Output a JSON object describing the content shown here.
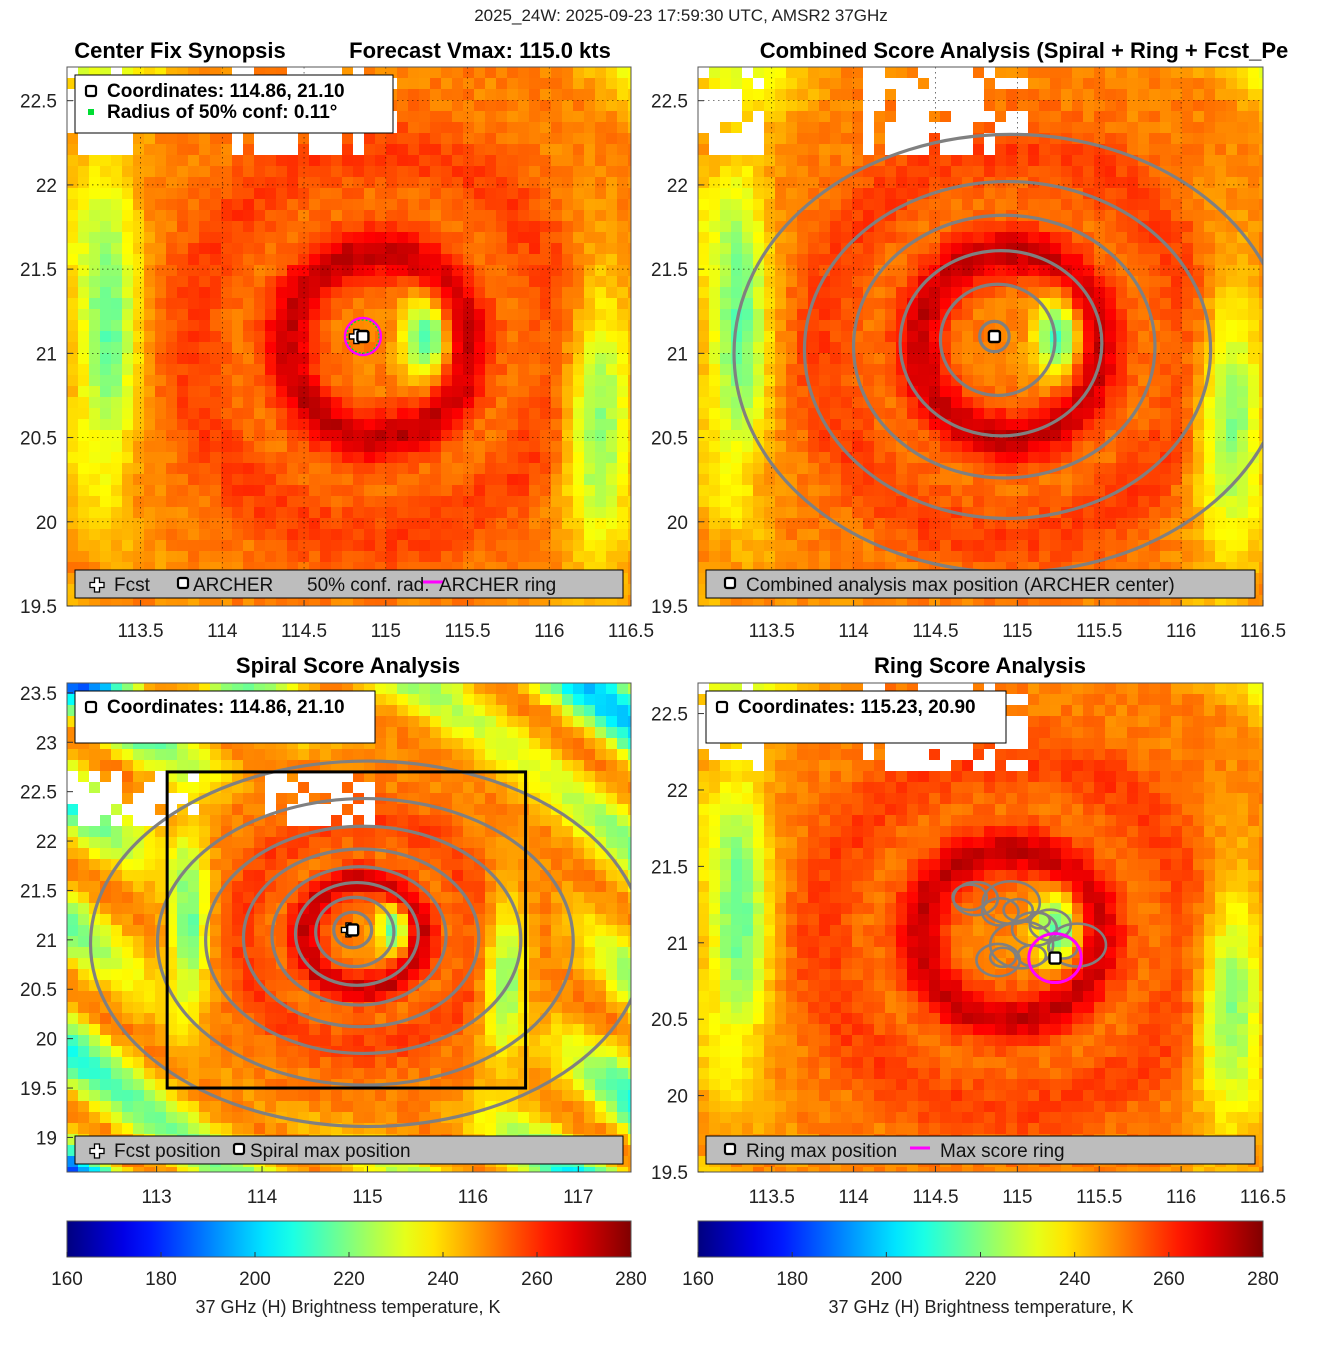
{
  "suptitle": "2025_24W: 2025-09-23 17:59:30 UTC, AMSR2 37GHz",
  "colors": {
    "ring": "#ff00ff",
    "conf": "#00dd33",
    "contour": "#808080",
    "legend_bg": "#bdbdbd"
  },
  "chart_data": [
    {
      "type": "heatmap",
      "panel": "center_fix_synopsis",
      "title_left": "Center Fix Synopsis",
      "title_right": "Forecast Vmax: 115.0 kts",
      "xlim": [
        113.05,
        116.5
      ],
      "ylim": [
        19.5,
        22.7
      ],
      "xticks": [
        "113.5",
        "114",
        "114.5",
        "115",
        "115.5",
        "116",
        "116.5"
      ],
      "xtick_values": [
        113.5,
        114,
        114.5,
        115,
        115.5,
        116,
        116.5
      ],
      "yticks": [
        "19.5",
        "20",
        "20.5",
        "21",
        "21.5",
        "22",
        "22.5"
      ],
      "ytick_values": [
        19.5,
        20,
        20.5,
        21,
        21.5,
        22,
        22.5
      ],
      "grid": true,
      "info_lines": [
        "Coordinates: 114.86, 21.10",
        "Radius of 50% conf: 0.11°"
      ],
      "markers": {
        "forecast": [
          114.82,
          21.1
        ],
        "archer": [
          114.86,
          21.1
        ],
        "conf_radius": 0.11,
        "ring_radius": 0.11
      },
      "legend": [
        "Fcst",
        "ARCHER",
        "50% conf. rad.",
        "ARCHER ring"
      ],
      "storm": {
        "center": [
          114.95,
          21.05
        ],
        "eyewall_radius": 0.55,
        "cold_sector": [
          115.25,
          21.1
        ]
      }
    },
    {
      "type": "heatmap",
      "panel": "combined_score",
      "title": "Combined Score Analysis (Spiral + Ring + Fcst_Pe",
      "xlim": [
        113.05,
        116.5
      ],
      "ylim": [
        19.5,
        22.7
      ],
      "xticks": [
        "113.5",
        "114",
        "114.5",
        "115",
        "115.5",
        "116",
        "116.5"
      ],
      "xtick_values": [
        113.5,
        114,
        114.5,
        115,
        115.5,
        116,
        116.5
      ],
      "yticks": [
        "19.5",
        "20",
        "20.5",
        "21",
        "21.5",
        "22",
        "22.5"
      ],
      "ytick_values": [
        19.5,
        20,
        20.5,
        21,
        21.5,
        22,
        22.5
      ],
      "grid": true,
      "markers": {
        "max": [
          114.86,
          21.1
        ]
      },
      "contour_radii": [
        0.09,
        0.33,
        0.55,
        0.78,
        1.0,
        1.3
      ],
      "legend": [
        "Combined analysis max position (ARCHER center)"
      ],
      "storm": {
        "center": [
          114.95,
          21.05
        ],
        "eyewall_radius": 0.55,
        "cold_sector": [
          115.25,
          21.1
        ]
      }
    },
    {
      "type": "heatmap",
      "panel": "spiral_score",
      "title": "Spiral Score Analysis",
      "xlim": [
        112.15,
        117.5
      ],
      "ylim": [
        18.65,
        23.6
      ],
      "xticks": [
        "113",
        "114",
        "115",
        "116",
        "117"
      ],
      "xtick_values": [
        113,
        114,
        115,
        116,
        117
      ],
      "yticks": [
        "19",
        "19.5",
        "20",
        "20.5",
        "21",
        "21.5",
        "22",
        "22.5",
        "23",
        "23.5"
      ],
      "ytick_values": [
        19,
        19.5,
        20,
        20.5,
        21,
        21.5,
        22,
        22.5,
        23,
        23.5
      ],
      "grid": false,
      "info_lines": [
        "Coordinates: 114.86, 21.10"
      ],
      "markers": {
        "forecast": [
          114.82,
          21.1
        ],
        "spiral_max": [
          114.86,
          21.1
        ]
      },
      "search_box": {
        "x": [
          113.1,
          116.5
        ],
        "y": [
          19.5,
          22.7
        ]
      },
      "contour_radii": [
        0.18,
        0.35,
        0.52,
        0.7,
        0.9,
        1.15,
        1.45,
        1.85
      ],
      "legend": [
        "Fcst position",
        "Spiral max position"
      ],
      "storm": {
        "center": [
          114.95,
          21.05
        ],
        "eyewall_radius": 0.55,
        "cold_sector": [
          115.25,
          21.1
        ]
      }
    },
    {
      "type": "heatmap",
      "panel": "ring_score",
      "title": "Ring Score Analysis",
      "xlim": [
        113.05,
        116.5
      ],
      "ylim": [
        19.5,
        22.7
      ],
      "xticks": [
        "113.5",
        "114",
        "114.5",
        "115",
        "115.5",
        "116",
        "116.5"
      ],
      "xtick_values": [
        113.5,
        114,
        114.5,
        115,
        115.5,
        116,
        116.5
      ],
      "yticks": [
        "19.5",
        "20",
        "20.5",
        "21",
        "21.5",
        "22",
        "22.5"
      ],
      "ytick_values": [
        19.5,
        20,
        20.5,
        21,
        21.5,
        22,
        22.5
      ],
      "grid": false,
      "info_lines": [
        "Coordinates: 115.23, 20.90"
      ],
      "markers": {
        "ring_max": [
          115.23,
          20.9
        ],
        "ring_radius": 0.16
      },
      "legend": [
        "Ring max position",
        "Max score ring"
      ],
      "storm": {
        "center": [
          114.95,
          21.05
        ],
        "eyewall_radius": 0.55,
        "cold_sector": [
          115.25,
          21.1
        ]
      }
    }
  ],
  "colorbars": [
    {
      "ticks": [
        "160",
        "180",
        "200",
        "220",
        "240",
        "260",
        "280"
      ],
      "tick_values": [
        160,
        180,
        200,
        220,
        240,
        260,
        280
      ],
      "range": [
        160,
        280
      ],
      "label": "37 GHz (H) Brightness temperature, K"
    },
    {
      "ticks": [
        "160",
        "180",
        "200",
        "220",
        "240",
        "260",
        "280"
      ],
      "tick_values": [
        160,
        180,
        200,
        220,
        240,
        260,
        280
      ],
      "range": [
        160,
        280
      ],
      "label": "37 GHz (H) Brightness temperature, K"
    }
  ]
}
